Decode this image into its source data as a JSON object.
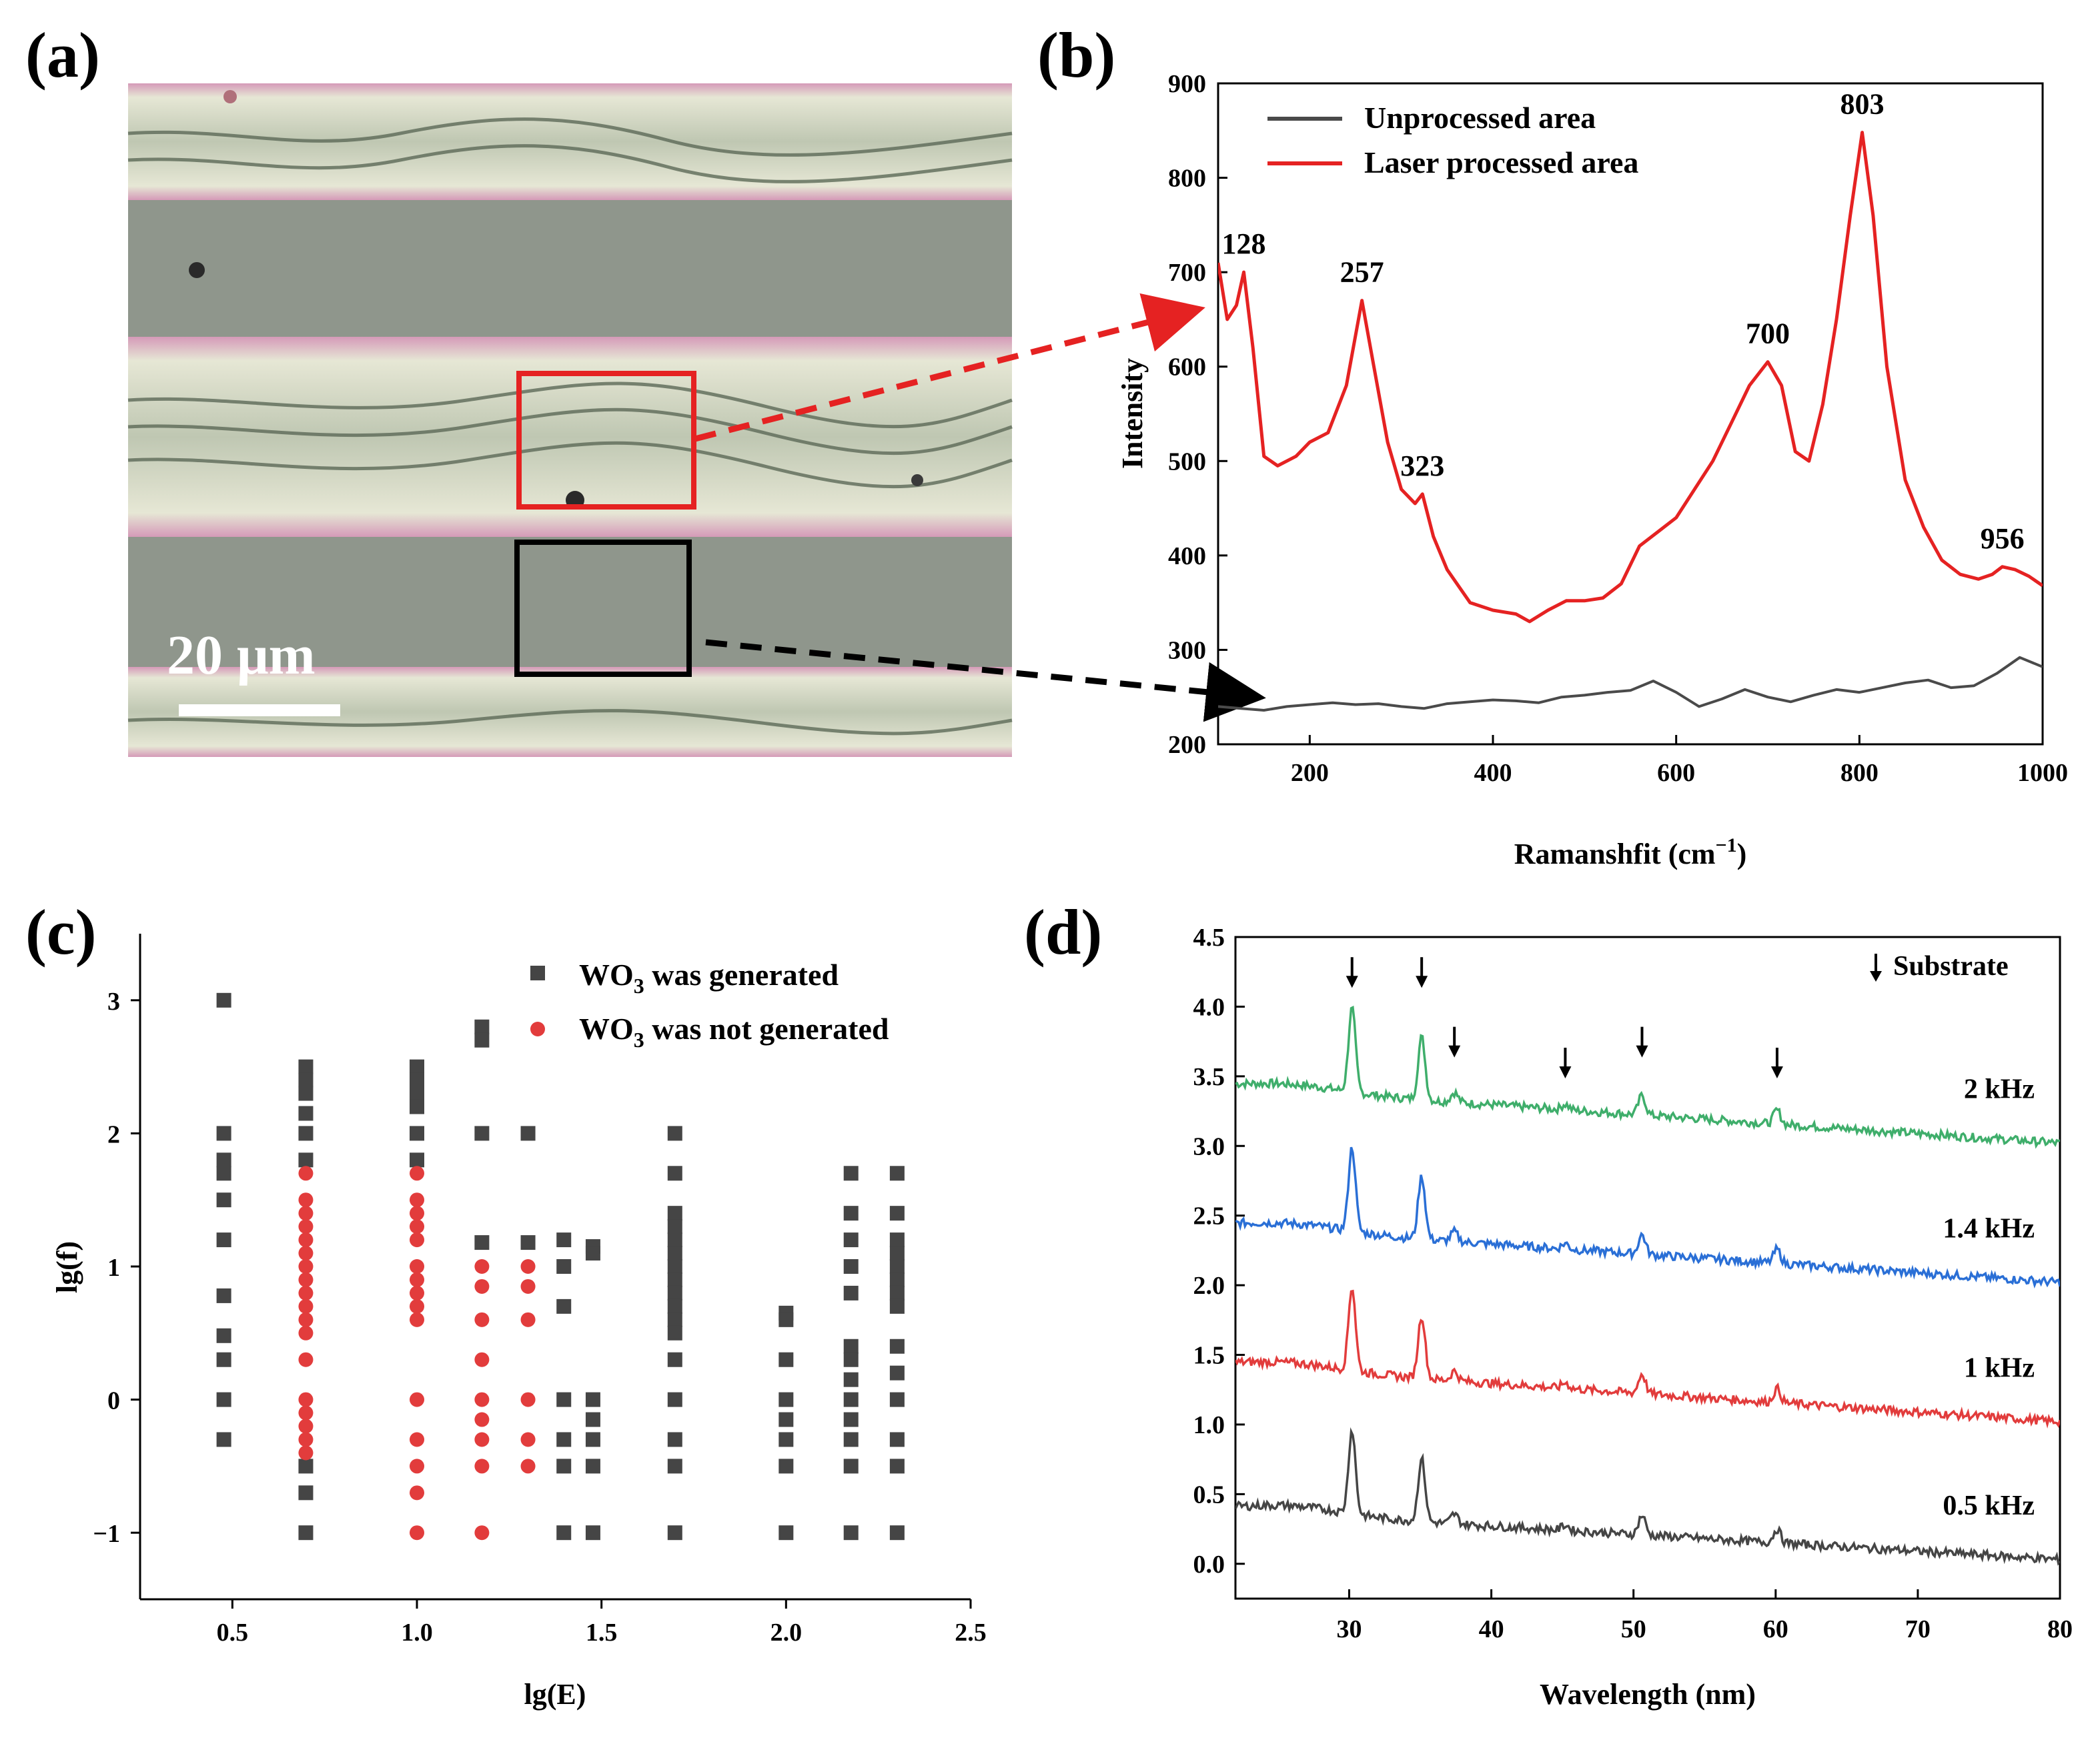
{
  "panel_labels": [
    "(a)",
    "(b)",
    "(c)",
    "(d)"
  ],
  "micrograph": {
    "scale_bar_label": "20 μm",
    "colors": {
      "background": "#8f968c",
      "stripe": "#c7c7b4",
      "pink": "#d8a4c0",
      "box_processed": "#e52222",
      "box_unprocessed": "#000000"
    }
  },
  "chart_data": [
    {
      "panel": "b",
      "type": "line",
      "xlabel": "Ramanshfit (cm",
      "xlabel_sup": "−1",
      "xlabel_end": ")",
      "ylabel": "Intensity",
      "xlim": [
        100,
        1000
      ],
      "ylim": [
        200,
        900
      ],
      "xticks": [
        200,
        400,
        600,
        800,
        1000
      ],
      "yticks": [
        200,
        300,
        400,
        500,
        600,
        700,
        800,
        900
      ],
      "legend_position": "top-left",
      "series": [
        {
          "name": "Unprocessed area",
          "color": "#4a4a4a",
          "x": [
            100,
            125,
            150,
            175,
            200,
            225,
            250,
            275,
            300,
            325,
            350,
            375,
            400,
            425,
            450,
            475,
            500,
            525,
            550,
            575,
            600,
            625,
            650,
            675,
            700,
            725,
            750,
            775,
            800,
            825,
            850,
            875,
            900,
            925,
            950,
            975,
            1000
          ],
          "y": [
            240,
            238,
            236,
            240,
            242,
            244,
            242,
            243,
            240,
            238,
            243,
            245,
            247,
            246,
            244,
            250,
            252,
            255,
            257,
            267,
            255,
            240,
            248,
            258,
            250,
            245,
            252,
            258,
            255,
            260,
            265,
            268,
            260,
            262,
            275,
            292,
            282
          ]
        },
        {
          "name": "Laser processed area",
          "color": "#e52222",
          "x": [
            100,
            110,
            120,
            128,
            138,
            150,
            165,
            185,
            200,
            220,
            240,
            257,
            270,
            285,
            300,
            315,
            323,
            335,
            350,
            375,
            400,
            425,
            440,
            460,
            480,
            500,
            520,
            540,
            560,
            580,
            600,
            620,
            640,
            660,
            680,
            700,
            715,
            730,
            745,
            760,
            775,
            790,
            803,
            815,
            830,
            850,
            870,
            890,
            910,
            930,
            945,
            956,
            970,
            985,
            1000
          ],
          "y": [
            710,
            650,
            665,
            700,
            620,
            505,
            495,
            505,
            520,
            530,
            580,
            670,
            600,
            520,
            470,
            455,
            465,
            420,
            385,
            350,
            342,
            338,
            330,
            342,
            352,
            352,
            355,
            370,
            410,
            425,
            440,
            470,
            500,
            540,
            580,
            605,
            580,
            510,
            500,
            560,
            650,
            760,
            848,
            760,
            600,
            480,
            430,
            395,
            380,
            375,
            380,
            388,
            385,
            378,
            368
          ]
        }
      ],
      "peak_labels": [
        {
          "x": 128,
          "y": 700,
          "label": "128"
        },
        {
          "x": 257,
          "y": 670,
          "label": "257"
        },
        {
          "x": 323,
          "y": 465,
          "label": "323"
        },
        {
          "x": 700,
          "y": 605,
          "label": "700"
        },
        {
          "x": 803,
          "y": 848,
          "label": "803"
        },
        {
          "x": 956,
          "y": 388,
          "label": "956"
        }
      ]
    },
    {
      "panel": "c",
      "type": "scatter",
      "xlabel": "lg(E)",
      "ylabel": "lg(f)",
      "xlim": [
        0.25,
        2.5
      ],
      "ylim": [
        -1.5,
        3.5
      ],
      "xticks": [
        "0.5",
        "1.0",
        "1.5",
        "2.0",
        "2.5"
      ],
      "yticks": [
        "−1",
        "0",
        "1",
        "2",
        "3"
      ],
      "legend_position": "top-right",
      "series": [
        {
          "name": "WO",
          "name_sub": "3",
          "name_rest": " was  generated",
          "color": "#454545",
          "marker": "square",
          "points": [
            [
              0.477,
              3.0
            ],
            [
              0.477,
              2.0
            ],
            [
              0.477,
              1.8
            ],
            [
              0.477,
              1.7
            ],
            [
              0.477,
              1.5
            ],
            [
              0.477,
              1.2
            ],
            [
              0.477,
              0.78
            ],
            [
              0.477,
              0.48
            ],
            [
              0.477,
              0.3
            ],
            [
              0.477,
              0.0
            ],
            [
              0.477,
              -0.3
            ],
            [
              0.699,
              2.5
            ],
            [
              0.699,
              2.4
            ],
            [
              0.699,
              2.3
            ],
            [
              0.699,
              2.15
            ],
            [
              0.699,
              2.0
            ],
            [
              0.699,
              1.8
            ],
            [
              0.699,
              -0.5
            ],
            [
              0.699,
              -0.7
            ],
            [
              0.699,
              -1.0
            ],
            [
              1.0,
              2.5
            ],
            [
              1.0,
              2.4
            ],
            [
              1.0,
              2.3
            ],
            [
              1.0,
              2.2
            ],
            [
              1.0,
              2.0
            ],
            [
              1.0,
              1.8
            ],
            [
              1.176,
              2.8
            ],
            [
              1.176,
              2.7
            ],
            [
              1.176,
              2.0
            ],
            [
              1.176,
              1.18
            ],
            [
              1.301,
              2.0
            ],
            [
              1.301,
              1.18
            ],
            [
              1.398,
              1.2
            ],
            [
              1.398,
              1.0
            ],
            [
              1.398,
              0.7
            ],
            [
              1.398,
              0.0
            ],
            [
              1.398,
              -0.3
            ],
            [
              1.398,
              -0.5
            ],
            [
              1.398,
              -1.0
            ],
            [
              1.477,
              1.15
            ],
            [
              1.477,
              1.1
            ],
            [
              1.477,
              0.0
            ],
            [
              1.477,
              -0.15
            ],
            [
              1.477,
              -0.3
            ],
            [
              1.477,
              -0.5
            ],
            [
              1.477,
              -1.0
            ],
            [
              1.699,
              2.0
            ],
            [
              1.699,
              1.7
            ],
            [
              1.699,
              1.4
            ],
            [
              1.699,
              1.3
            ],
            [
              1.699,
              1.2
            ],
            [
              1.699,
              1.1
            ],
            [
              1.699,
              1.0
            ],
            [
              1.699,
              0.9
            ],
            [
              1.699,
              0.8
            ],
            [
              1.699,
              0.7
            ],
            [
              1.699,
              0.6
            ],
            [
              1.699,
              0.5
            ],
            [
              1.699,
              0.3
            ],
            [
              1.699,
              0.0
            ],
            [
              1.699,
              -0.3
            ],
            [
              1.699,
              -0.5
            ],
            [
              1.699,
              -1.0
            ],
            [
              2.0,
              0.65
            ],
            [
              2.0,
              0.6
            ],
            [
              2.0,
              0.3
            ],
            [
              2.0,
              0.0
            ],
            [
              2.0,
              -0.15
            ],
            [
              2.0,
              -0.3
            ],
            [
              2.0,
              -0.5
            ],
            [
              2.0,
              -1.0
            ],
            [
              2.176,
              1.7
            ],
            [
              2.176,
              1.4
            ],
            [
              2.176,
              1.2
            ],
            [
              2.176,
              1.0
            ],
            [
              2.176,
              0.8
            ],
            [
              2.176,
              0.4
            ],
            [
              2.176,
              0.3
            ],
            [
              2.176,
              0.15
            ],
            [
              2.176,
              0.0
            ],
            [
              2.176,
              -0.15
            ],
            [
              2.176,
              -0.3
            ],
            [
              2.176,
              -0.5
            ],
            [
              2.176,
              -1.0
            ],
            [
              2.301,
              1.7
            ],
            [
              2.301,
              1.4
            ],
            [
              2.301,
              1.2
            ],
            [
              2.301,
              1.1
            ],
            [
              2.301,
              1.0
            ],
            [
              2.301,
              0.9
            ],
            [
              2.301,
              0.8
            ],
            [
              2.301,
              0.7
            ],
            [
              2.301,
              0.4
            ],
            [
              2.301,
              0.2
            ],
            [
              2.301,
              0.0
            ],
            [
              2.301,
              -0.3
            ],
            [
              2.301,
              -0.5
            ],
            [
              2.301,
              -1.0
            ]
          ]
        },
        {
          "name": "WO",
          "name_sub": "3",
          "name_rest": " was not generated",
          "color": "#e23c3c",
          "marker": "circle",
          "points": [
            [
              0.699,
              1.7
            ],
            [
              0.699,
              1.5
            ],
            [
              0.699,
              1.4
            ],
            [
              0.699,
              1.3
            ],
            [
              0.699,
              1.2
            ],
            [
              0.699,
              1.1
            ],
            [
              0.699,
              1.0
            ],
            [
              0.699,
              0.9
            ],
            [
              0.699,
              0.8
            ],
            [
              0.699,
              0.7
            ],
            [
              0.699,
              0.6
            ],
            [
              0.699,
              0.5
            ],
            [
              0.699,
              0.3
            ],
            [
              0.699,
              0.0
            ],
            [
              0.699,
              -0.1
            ],
            [
              0.699,
              -0.2
            ],
            [
              0.699,
              -0.3
            ],
            [
              0.699,
              -0.4
            ],
            [
              1.0,
              1.7
            ],
            [
              1.0,
              1.5
            ],
            [
              1.0,
              1.4
            ],
            [
              1.0,
              1.3
            ],
            [
              1.0,
              1.2
            ],
            [
              1.0,
              1.0
            ],
            [
              1.0,
              0.9
            ],
            [
              1.0,
              0.8
            ],
            [
              1.0,
              0.7
            ],
            [
              1.0,
              0.6
            ],
            [
              1.0,
              0.0
            ],
            [
              1.0,
              -0.3
            ],
            [
              1.0,
              -0.5
            ],
            [
              1.0,
              -0.7
            ],
            [
              1.0,
              -1.0
            ],
            [
              1.176,
              1.0
            ],
            [
              1.176,
              0.85
            ],
            [
              1.176,
              0.6
            ],
            [
              1.176,
              0.3
            ],
            [
              1.176,
              0.0
            ],
            [
              1.176,
              -0.15
            ],
            [
              1.176,
              -0.3
            ],
            [
              1.176,
              -0.5
            ],
            [
              1.176,
              -1.0
            ],
            [
              1.301,
              1.0
            ],
            [
              1.301,
              0.85
            ],
            [
              1.301,
              0.6
            ],
            [
              1.301,
              0.0
            ],
            [
              1.301,
              -0.3
            ],
            [
              1.301,
              -0.5
            ]
          ]
        }
      ]
    },
    {
      "panel": "d",
      "type": "line",
      "xlabel": "Wavelength (nm)",
      "xlim": [
        22,
        80
      ],
      "ylim": [
        -0.25,
        4.5
      ],
      "xticks": [
        30,
        40,
        50,
        60,
        70,
        80
      ],
      "yticks": [
        "0.0",
        "0.5",
        "1.0",
        "1.5",
        "2.0",
        "2.5",
        "3.0",
        "3.5",
        "4.0",
        "4.5"
      ],
      "legend_label": "Substrate",
      "legend_position": "top-right",
      "substrate_arrows": [
        {
          "x": 30.2,
          "y": 4.25
        },
        {
          "x": 35.1,
          "y": 4.25
        },
        {
          "x": 37.4,
          "y": 3.75
        },
        {
          "x": 45.2,
          "y": 3.6
        },
        {
          "x": 50.6,
          "y": 3.75
        },
        {
          "x": 60.1,
          "y": 3.6
        }
      ],
      "peaks": [
        {
          "x": 30.2,
          "h": 0.6
        },
        {
          "x": 35.1,
          "h": 0.45
        },
        {
          "x": 37.4,
          "h": 0.07
        },
        {
          "x": 45.2,
          "h": 0.04
        },
        {
          "x": 50.6,
          "h": 0.14
        },
        {
          "x": 60.1,
          "h": 0.1
        }
      ],
      "series": [
        {
          "name": "2 kHz",
          "color": "#3fae6b",
          "baseline_start": 3.42,
          "baseline_end": 3.02,
          "hump": 0.05
        },
        {
          "name": "1.4 kHz",
          "color": "#2a6fd6",
          "baseline_start": 2.42,
          "baseline_end": 2.02,
          "hump": 0.05
        },
        {
          "name": "1 kHz",
          "color": "#e23c3c",
          "baseline_start": 1.42,
          "baseline_end": 1.02,
          "hump": 0.05
        },
        {
          "name": "0.5 kHz",
          "color": "#454545",
          "baseline_start": 0.38,
          "baseline_end": 0.03,
          "hump": 0.06
        }
      ]
    }
  ]
}
